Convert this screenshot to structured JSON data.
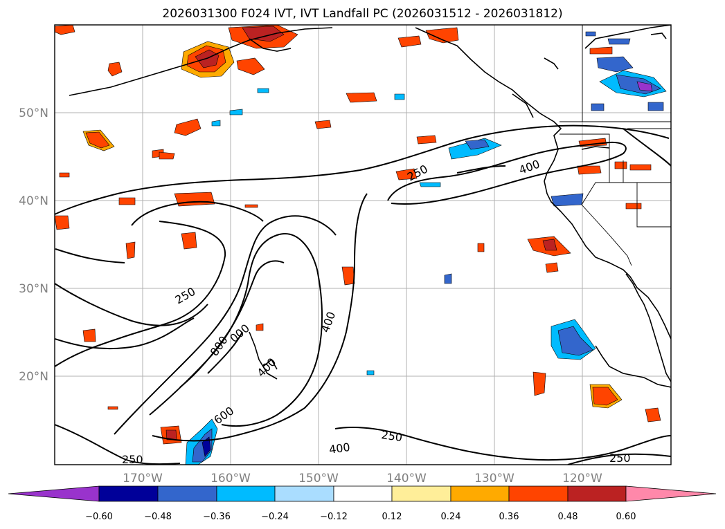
{
  "title": "2026031300 F024 IVT, IVT Landfall PC (2026031512 - 2026031812)",
  "lat_labels": [
    "50°N",
    "40°N",
    "30°N",
    "20°N"
  ],
  "lon_labels": [
    "170°W",
    "160°W",
    "150°W",
    "140°W",
    "130°W",
    "120°W"
  ],
  "contour_labels": [
    "250",
    "250",
    "250",
    "250",
    "250",
    "400",
    "400",
    "400",
    "600",
    "800",
    "000",
    "400"
  ],
  "colorbar": {
    "tick_labels": [
      "−0.60",
      "−0.48",
      "−0.36",
      "−0.24",
      "−0.12",
      "0.12",
      "0.24",
      "0.36",
      "0.48",
      "0.60"
    ],
    "colors": [
      "#9933cc",
      "#000099",
      "#3366cc",
      "#00bbff",
      "#aaddff",
      "#ffffff",
      "#ffee99",
      "#ffaa00",
      "#ff4400",
      "#bb2222",
      "#ff88aa"
    ]
  },
  "legend_colors": {
    "positive_light": "#ffee99",
    "positive_mid": "#ffaa00",
    "positive_strong": "#ff4400",
    "positive_max": "#bb2222",
    "negative_light": "#aaddff",
    "negative_mid": "#00bbff",
    "negative_strong": "#3366cc",
    "negative_max": "#000099"
  }
}
